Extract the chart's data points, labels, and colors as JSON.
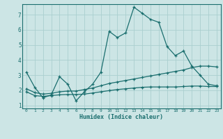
{
  "title": "",
  "xlabel": "Humidex (Indice chaleur)",
  "ylabel": "",
  "background_color": "#cce5e5",
  "grid_color": "#aacfcf",
  "line_color": "#1a6e6e",
  "xlim": [
    -0.5,
    23.5
  ],
  "ylim": [
    0.8,
    7.7
  ],
  "yticks": [
    1,
    2,
    3,
    4,
    5,
    6,
    7
  ],
  "xticks": [
    0,
    1,
    2,
    3,
    4,
    5,
    6,
    7,
    8,
    9,
    10,
    11,
    12,
    13,
    14,
    15,
    16,
    17,
    18,
    19,
    20,
    21,
    22,
    23
  ],
  "series1_x": [
    0,
    1,
    2,
    3,
    4,
    5,
    6,
    7,
    8,
    9,
    10,
    11,
    12,
    13,
    14,
    15,
    16,
    17,
    18,
    19,
    20,
    21,
    22,
    23
  ],
  "series1_y": [
    3.2,
    2.2,
    1.5,
    1.7,
    2.9,
    2.4,
    1.3,
    1.9,
    2.4,
    3.2,
    5.9,
    5.5,
    5.8,
    7.5,
    7.1,
    6.7,
    6.5,
    4.9,
    4.3,
    4.6,
    3.6,
    3.0,
    2.4,
    2.3
  ],
  "series2_x": [
    0,
    1,
    2,
    3,
    4,
    5,
    6,
    7,
    8,
    9,
    10,
    11,
    12,
    13,
    14,
    15,
    16,
    17,
    18,
    19,
    20,
    21,
    22,
    23
  ],
  "series2_y": [
    2.1,
    1.85,
    1.75,
    1.8,
    1.9,
    1.95,
    1.95,
    2.05,
    2.15,
    2.3,
    2.45,
    2.55,
    2.65,
    2.75,
    2.85,
    2.95,
    3.05,
    3.15,
    3.25,
    3.35,
    3.5,
    3.6,
    3.6,
    3.55
  ],
  "series3_x": [
    0,
    1,
    2,
    3,
    4,
    5,
    6,
    7,
    8,
    9,
    10,
    11,
    12,
    13,
    14,
    15,
    16,
    17,
    18,
    19,
    20,
    21,
    22,
    23
  ],
  "series3_y": [
    1.9,
    1.65,
    1.6,
    1.65,
    1.7,
    1.72,
    1.72,
    1.75,
    1.82,
    1.9,
    1.98,
    2.05,
    2.1,
    2.15,
    2.2,
    2.22,
    2.22,
    2.22,
    2.22,
    2.25,
    2.28,
    2.28,
    2.25,
    2.25
  ]
}
